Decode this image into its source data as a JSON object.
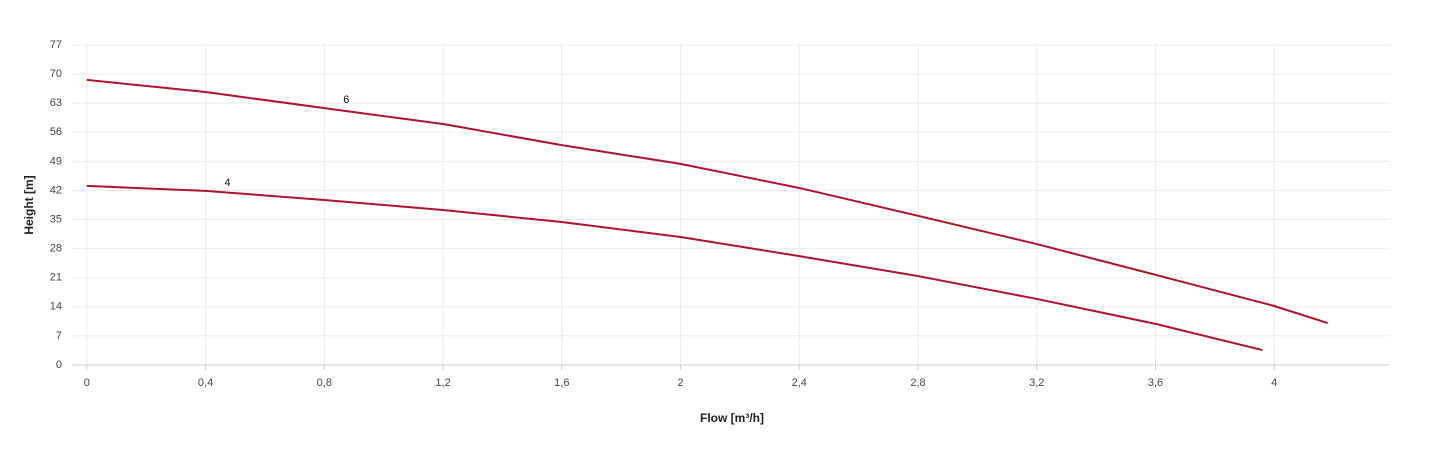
{
  "chart_data": {
    "type": "line",
    "x_label": "Flow [m³/h]",
    "y_label": "Height [m]",
    "series": [
      {
        "name": "6",
        "color": "#b0122b",
        "x": [
          0,
          0.4,
          0.8,
          1.2,
          1.6,
          2,
          2.4,
          2.8,
          3.2,
          3.6,
          4,
          4.18
        ],
        "values": [
          68.6,
          65.7,
          61.8,
          58,
          52.9,
          48.4,
          42.6,
          35.9,
          29.1,
          21.7,
          14.2,
          10.1
        ]
      },
      {
        "name": "4",
        "color": "#b0122b",
        "x": [
          0,
          0.4,
          0.8,
          1.2,
          1.6,
          2,
          2.4,
          2.8,
          3.2,
          3.6,
          3.96
        ],
        "values": [
          43.1,
          41.9,
          39.7,
          37.3,
          34.4,
          30.8,
          26.2,
          21.4,
          15.9,
          9.9,
          3.6
        ]
      }
    ],
    "xlim": [
      -0.05,
      4.39
    ],
    "xticks": [
      0,
      {
        "value": 0.4,
        "label": "0,4"
      },
      {
        "value": 0.8,
        "label": "0,8"
      },
      {
        "value": 1.2,
        "label": "1,2"
      },
      {
        "value": 1.6,
        "label": "1,6"
      },
      2,
      {
        "value": 2.4,
        "label": "2,4"
      },
      {
        "value": 2.8,
        "label": "2,8"
      },
      {
        "value": 3.2,
        "label": "3,2"
      },
      {
        "value": 3.6,
        "label": "3,6"
      },
      4
    ],
    "ylim": [
      0,
      77
    ],
    "yticks": [
      0,
      7,
      14,
      21,
      28,
      35,
      42,
      49,
      56,
      63,
      70,
      77
    ],
    "grid": true
  }
}
